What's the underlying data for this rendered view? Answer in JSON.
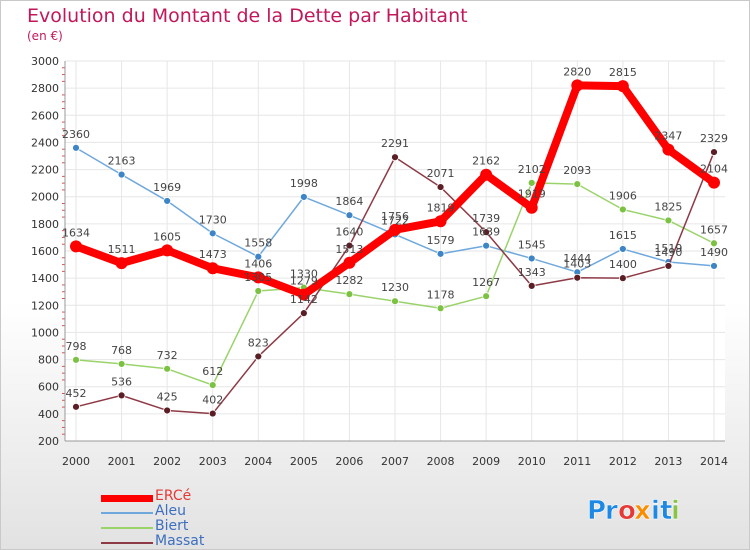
{
  "header": {
    "title": "Evolution du Montant de la Dette par Habitant",
    "unit": "(en €)"
  },
  "logo": {
    "text": "Proxiti",
    "letters": [
      "P",
      "r",
      "o",
      "x",
      "i",
      "t",
      "i"
    ],
    "letter_colors": [
      "#1e88e5",
      "#1e88e5",
      "#e53935",
      "#fb8c00",
      "#1e88e5",
      "#1e88e5",
      "#8bc34a"
    ]
  },
  "chart_data": {
    "type": "line",
    "title": "Evolution du Montant de la Dette par Habitant",
    "subtitle": "(en €)",
    "xlabel": "",
    "ylabel": "",
    "x": [
      "2000",
      "2001",
      "2002",
      "2003",
      "2004",
      "2005",
      "2006",
      "2007",
      "2008",
      "2009",
      "2010",
      "2011",
      "2012",
      "2013",
      "2014"
    ],
    "ylim": [
      200,
      3000
    ],
    "yticks": [
      200,
      400,
      600,
      800,
      1000,
      1200,
      1400,
      1600,
      1800,
      2000,
      2200,
      2400,
      2600,
      2800,
      3000
    ],
    "grid": true,
    "legend_position": "bottom-left",
    "series": [
      {
        "name": "ERCé",
        "color": "#ff0000",
        "marker": "#ff0000",
        "values": [
          1634,
          1511,
          1605,
          1473,
          1406,
          1279,
          1513,
          1756,
          1819,
          2162,
          1919,
          2820,
          2815,
          2347,
          2104
        ]
      },
      {
        "name": "Aleu",
        "color": "#6fa8dc",
        "marker": "#3d85c6",
        "values": [
          2360,
          2163,
          1969,
          1730,
          1558,
          1998,
          1864,
          1722,
          1579,
          1639,
          1545,
          1444,
          1615,
          1519,
          1490
        ]
      },
      {
        "name": "Biert",
        "color": "#9ad36a",
        "marker": "#7cc242",
        "values": [
          798,
          768,
          732,
          612,
          1305,
          1330,
          1282,
          1230,
          1178,
          1267,
          2102,
          2093,
          1906,
          1825,
          1657
        ]
      },
      {
        "name": "Massat",
        "color": "#8e3a46",
        "marker": "#5a1e24",
        "values": [
          452,
          536,
          425,
          402,
          823,
          1142,
          1640,
          2291,
          2071,
          1739,
          1343,
          1403,
          1400,
          1490,
          2329
        ]
      }
    ]
  }
}
